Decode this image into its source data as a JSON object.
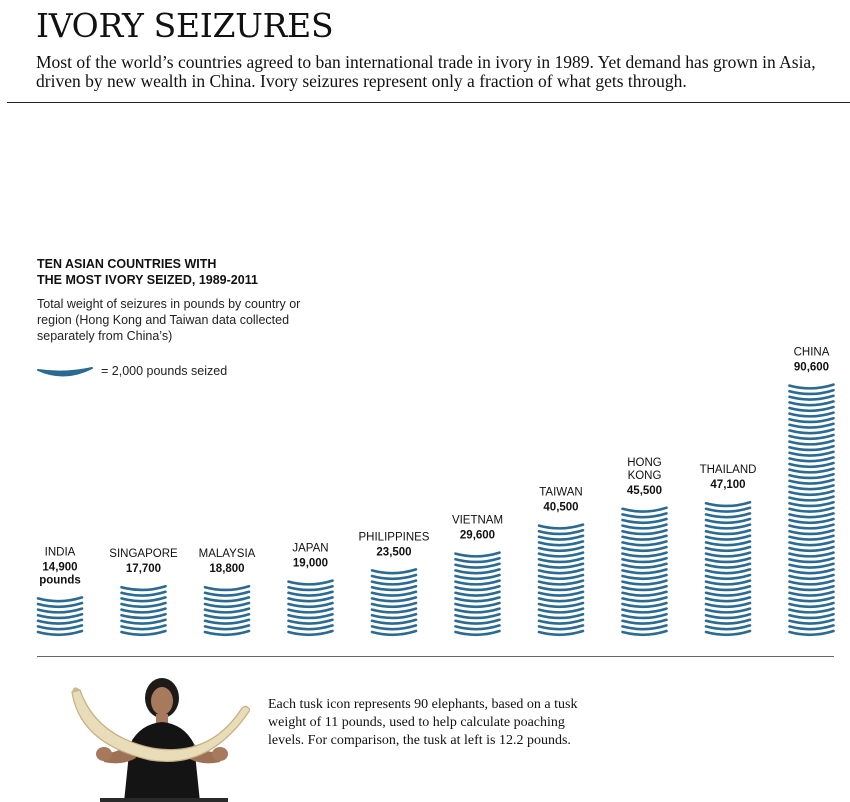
{
  "header": {
    "title": "IVORY SEIZURES",
    "intro": "Most of the world’s countries agreed to ban international trade in ivory in 1989. Yet demand has grown in Asia, driven by new wealth in China. Ivory seizures represent only a fraction of what gets through."
  },
  "legend": {
    "heading_line1": "TEN ASIAN COUNTRIES WITH",
    "heading_line2": "THE MOST IVORY SEIZED, 1989-2011",
    "description": "Total weight of seizures in pounds by country or region (Hong Kong and Taiwan data collected separately from China’s)",
    "key_text": "= 2,000 pounds seized"
  },
  "colors": {
    "tusk_blue": "#2b6b93",
    "ivory": "#e9dcb8",
    "text": "#111111"
  },
  "chart_data": {
    "type": "bar",
    "unit": "pounds",
    "icon_unit": 2000,
    "categories": [
      "INDIA",
      "SINGAPORE",
      "MALAYSIA",
      "JAPAN",
      "PHILIPPINES",
      "VIETNAM",
      "TAIWAN",
      "HONG KONG",
      "THAILAND",
      "CHINA"
    ],
    "label_lines": [
      [
        "INDIA"
      ],
      [
        "SINGAPORE"
      ],
      [
        "MALAYSIA"
      ],
      [
        "JAPAN"
      ],
      [
        "PHILIPPINES"
      ],
      [
        "VIETNAM"
      ],
      [
        "TAIWAN"
      ],
      [
        "HONG",
        "KONG"
      ],
      [
        "THAILAND"
      ],
      [
        "CHINA"
      ]
    ],
    "values": [
      14900,
      17700,
      18800,
      19000,
      23500,
      29600,
      40500,
      45500,
      47100,
      90600
    ],
    "value_labels": [
      "14,900",
      "17,700",
      "18,800",
      "19,000",
      "23,500",
      "29,600",
      "40,500",
      "45,500",
      "47,100",
      "90,600"
    ],
    "unit_label_first": "pounds",
    "title": "TEN ASIAN COUNTRIES WITH THE MOST IVORY SEIZED, 1989-2011",
    "ylabel": "Total weight of seizures in pounds"
  },
  "footer": {
    "caption": "Each tusk icon represents 90 elephants, based on a tusk weight of 11 pounds, used to help calculate poaching levels. For comparison, the tusk at left is 12.2 pounds."
  }
}
